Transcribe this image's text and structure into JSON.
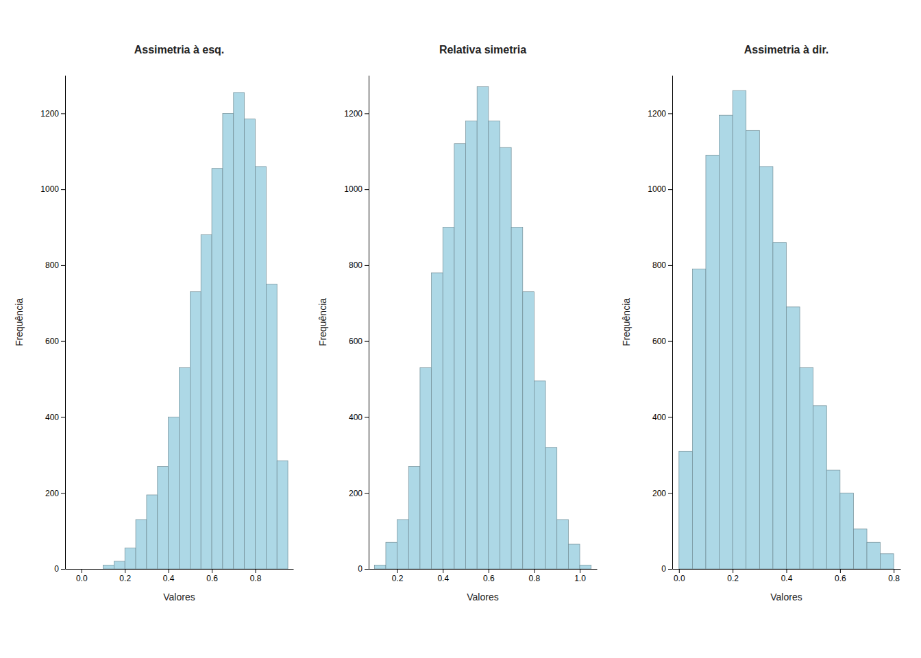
{
  "chart_data": [
    {
      "type": "histogram",
      "title": "Assimetria à esq.",
      "bins": [
        0.1,
        0.15,
        0.2,
        0.25,
        0.3,
        0.35,
        0.4,
        0.45,
        0.5,
        0.55,
        0.6,
        0.65,
        0.7,
        0.75,
        0.8,
        0.85,
        0.9,
        0.95
      ],
      "values": [
        10,
        20,
        55,
        130,
        195,
        270,
        400,
        530,
        730,
        880,
        1055,
        1200,
        1255,
        1185,
        1060,
        750,
        285
      ],
      "color": "#add8e6",
      "xlabel": "Valores",
      "ylabel": "Frequência",
      "xlim": [
        -0.075,
        0.975
      ],
      "xticks": [
        {
          "value": 0.0,
          "label": "0.0"
        },
        0.2,
        0.4,
        0.6,
        0.8
      ],
      "ylim": [
        0,
        1300
      ],
      "yticks": [
        0,
        200,
        400,
        600,
        800,
        1000,
        1200
      ]
    },
    {
      "type": "histogram",
      "title": "Relativa simetria",
      "bins": [
        0.1,
        0.15,
        0.2,
        0.25,
        0.3,
        0.35,
        0.4,
        0.45,
        0.5,
        0.55,
        0.6,
        0.65,
        0.7,
        0.75,
        0.8,
        0.85,
        0.9,
        0.95,
        1.0,
        1.05
      ],
      "values": [
        10,
        70,
        130,
        270,
        530,
        780,
        900,
        1120,
        1180,
        1270,
        1180,
        1110,
        900,
        730,
        495,
        320,
        130,
        65,
        10
      ],
      "color": "#add8e6",
      "xlabel": "Valores",
      "ylabel": "Frequência",
      "xlim": [
        0.075,
        1.075
      ],
      "xticks": [
        0.2,
        0.4,
        0.6,
        0.8,
        {
          "value": 1.0,
          "label": "1.0"
        }
      ],
      "ylim": [
        0,
        1300
      ],
      "yticks": [
        0,
        200,
        400,
        600,
        800,
        1000,
        1200
      ]
    },
    {
      "type": "histogram",
      "title": "Assimetria à dir.",
      "bins": [
        0.0,
        0.05,
        0.1,
        0.15,
        0.2,
        0.25,
        0.3,
        0.35,
        0.4,
        0.45,
        0.5,
        0.55,
        0.6,
        0.65,
        0.7,
        0.75,
        0.8
      ],
      "values": [
        310,
        790,
        1090,
        1195,
        1260,
        1155,
        1060,
        860,
        690,
        530,
        430,
        260,
        200,
        105,
        70,
        40
      ],
      "color": "#add8e6",
      "xlabel": "Valores",
      "ylabel": "Frequência",
      "xlim": [
        -0.025,
        0.825
      ],
      "xticks": [
        {
          "value": 0.0,
          "label": "0.0"
        },
        0.2,
        0.4,
        0.6,
        0.8
      ],
      "ylim": [
        0,
        1300
      ],
      "yticks": [
        0,
        200,
        400,
        600,
        800,
        1000,
        1200
      ]
    }
  ]
}
